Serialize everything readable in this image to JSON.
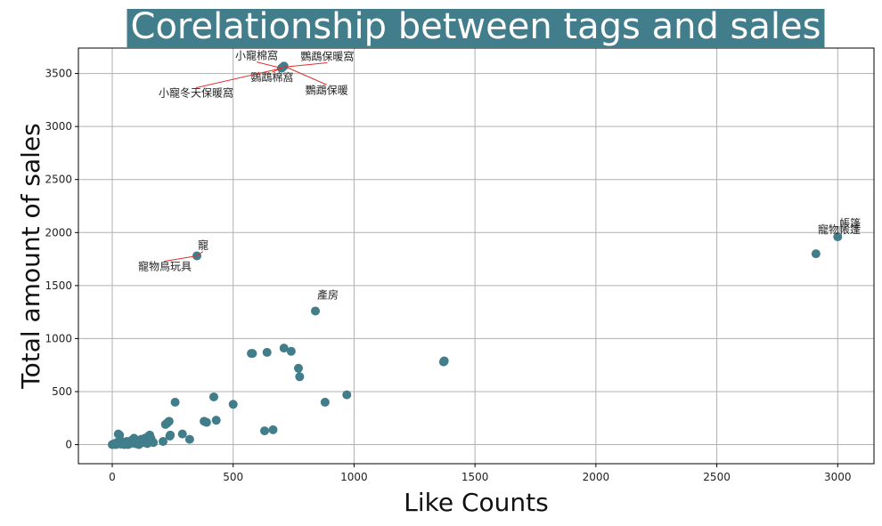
{
  "chart_data": {
    "type": "scatter",
    "title": "Corelationship between tags and sales",
    "xlabel": "Like Counts",
    "ylabel": "Total amount of sales",
    "xlim": [
      -140,
      3150
    ],
    "ylim": [
      -180,
      3740
    ],
    "xticks": [
      0,
      500,
      1000,
      1500,
      2000,
      2500,
      3000
    ],
    "yticks": [
      0,
      500,
      1000,
      1500,
      2000,
      2500,
      3000,
      3500
    ],
    "grid": true,
    "colors": {
      "point": "#417D8A",
      "title_bg": "#417D8A",
      "grid": "#b0b0b0",
      "arrow": "#e03030"
    },
    "points": [
      [
        0,
        0
      ],
      [
        5,
        5
      ],
      [
        10,
        10
      ],
      [
        15,
        0
      ],
      [
        20,
        20
      ],
      [
        25,
        100
      ],
      [
        30,
        90
      ],
      [
        35,
        5
      ],
      [
        40,
        15
      ],
      [
        45,
        25
      ],
      [
        50,
        0
      ],
      [
        55,
        10
      ],
      [
        60,
        30
      ],
      [
        65,
        0
      ],
      [
        70,
        20
      ],
      [
        75,
        10
      ],
      [
        80,
        40
      ],
      [
        85,
        20
      ],
      [
        90,
        60
      ],
      [
        95,
        10
      ],
      [
        100,
        30
      ],
      [
        105,
        20
      ],
      [
        110,
        0
      ],
      [
        115,
        40
      ],
      [
        120,
        50
      ],
      [
        125,
        30
      ],
      [
        130,
        20
      ],
      [
        135,
        60
      ],
      [
        140,
        40
      ],
      [
        145,
        10
      ],
      [
        150,
        80
      ],
      [
        155,
        90
      ],
      [
        160,
        60
      ],
      [
        170,
        20
      ],
      [
        210,
        30
      ],
      [
        220,
        190
      ],
      [
        225,
        200
      ],
      [
        230,
        210
      ],
      [
        235,
        220
      ],
      [
        238,
        80
      ],
      [
        240,
        90
      ],
      [
        260,
        400
      ],
      [
        290,
        100
      ],
      [
        320,
        50
      ],
      [
        380,
        220
      ],
      [
        390,
        210
      ],
      [
        420,
        450
      ],
      [
        430,
        230
      ],
      [
        500,
        380
      ],
      [
        575,
        860
      ],
      [
        580,
        860
      ],
      [
        630,
        130
      ],
      [
        640,
        870
      ],
      [
        665,
        140
      ],
      [
        710,
        910
      ],
      [
        740,
        880
      ],
      [
        770,
        720
      ],
      [
        775,
        640
      ],
      [
        880,
        400
      ],
      [
        970,
        470
      ],
      [
        1370,
        780
      ],
      [
        1372,
        785
      ],
      [
        1373,
        790
      ],
      [
        840,
        1260
      ],
      [
        350,
        1780
      ],
      [
        2910,
        1800
      ],
      [
        3000,
        1960
      ],
      [
        700,
        3550
      ],
      [
        705,
        3560
      ],
      [
        710,
        3570
      ]
    ],
    "annotations": [
      {
        "text": "小寵棉窩",
        "x": 700,
        "y": 3550
      },
      {
        "text": "鸚鵡保暖窩",
        "x": 705,
        "y": 3560
      },
      {
        "text": "鸚鵡棉窩",
        "x": 705,
        "y": 3555
      },
      {
        "text": "小寵冬天保暖窩",
        "x": 700,
        "y": 3550
      },
      {
        "text": "鸚鵡保暖",
        "x": 710,
        "y": 3570
      },
      {
        "text": "寵",
        "x": 350,
        "y": 1780
      },
      {
        "text": "寵物鳥玩具",
        "x": 350,
        "y": 1780
      },
      {
        "text": "產房",
        "x": 840,
        "y": 1260
      },
      {
        "text": "帳篷",
        "x": 3000,
        "y": 1960
      },
      {
        "text": "寵物帳篷",
        "x": 2910,
        "y": 1800
      }
    ]
  }
}
